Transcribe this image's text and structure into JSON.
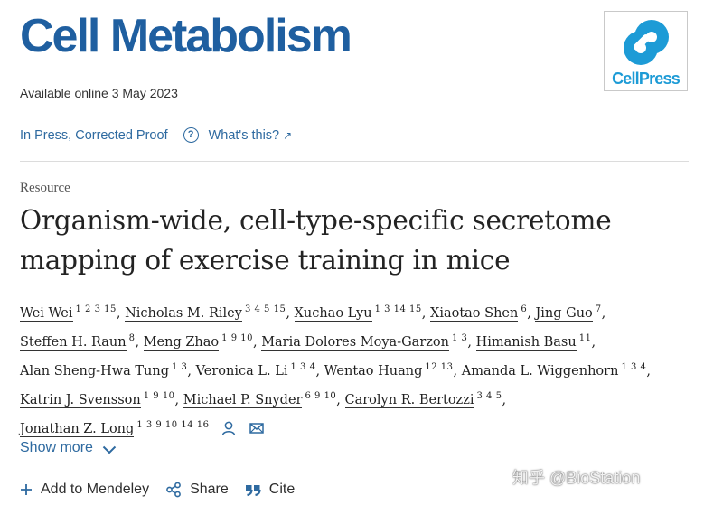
{
  "journal": {
    "name": "Cell Metabolism",
    "publisher_logo_text": "CellPress"
  },
  "availability": "Available online 3 May 2023",
  "status": {
    "label": "In Press, Corrected Proof",
    "help_link": "What's this?",
    "help_icon": "?",
    "ext_arrow": "↗"
  },
  "article": {
    "type": "Resource",
    "title_line1": "Organism-wide, cell-type-specific secretome",
    "title_line2": "mapping of exercise training in mice"
  },
  "authors": [
    {
      "name": "Wei Wei",
      "affil": "1 2 3 15"
    },
    {
      "name": "Nicholas M. Riley",
      "affil": "3 4 5 15"
    },
    {
      "name": "Xuchao Lyu",
      "affil": "1 3 14 15"
    },
    {
      "name": "Xiaotao Shen",
      "affil": "6"
    },
    {
      "name": "Jing Guo",
      "affil": "7"
    },
    {
      "name": "Steffen H. Raun",
      "affil": "8"
    },
    {
      "name": "Meng Zhao",
      "affil": "1 9 10"
    },
    {
      "name": "Maria Dolores Moya-Garzon",
      "affil": "1 3"
    },
    {
      "name": "Himanish Basu",
      "affil": "11"
    },
    {
      "name": "Alan Sheng-Hwa Tung",
      "affil": "1 3"
    },
    {
      "name": "Veronica L. Li",
      "affil": "1 3 4"
    },
    {
      "name": "Wentao Huang",
      "affil": "12 13"
    },
    {
      "name": "Amanda L. Wiggenhorn",
      "affil": "1 3 4"
    },
    {
      "name": "Katrin J. Svensson",
      "affil": "1 9 10"
    },
    {
      "name": "Michael P. Snyder",
      "affil": "6 9 10"
    },
    {
      "name": "Carolyn R. Bertozzi",
      "affil": "3 4 5"
    },
    {
      "name": "Jonathan Z. Long",
      "affil": "1 3 9 10 14 16"
    }
  ],
  "separators": {
    "comma": ","
  },
  "show_more": "Show more",
  "actions": {
    "mendeley": "Add to Mendeley",
    "share": "Share",
    "cite": "Cite",
    "plus_glyph": "+",
    "quote_glyph": "99"
  },
  "watermark": "知乎 @BioStation",
  "colors": {
    "journal_blue": "#1f5fa0",
    "link_blue": "#2e6aa0",
    "cellpress_blue": "#1d9bd6"
  },
  "icons": [
    "cellpress-logo-icon",
    "help-icon",
    "external-link-icon",
    "person-icon",
    "mail-icon",
    "chevron-down-icon",
    "plus-icon",
    "share-icon",
    "quote-icon"
  ]
}
